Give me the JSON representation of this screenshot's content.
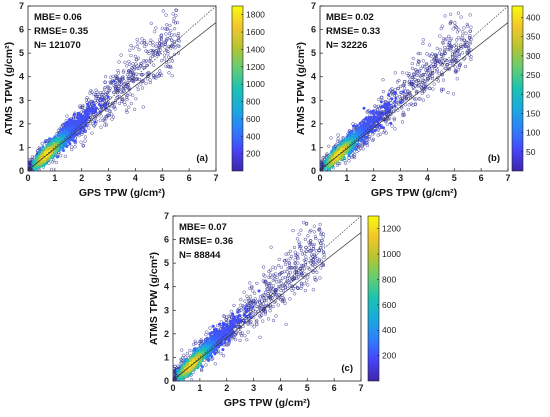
{
  "chart_data": [
    {
      "type": "scatter",
      "panel_label": "(a)",
      "xlabel": "GPS TPW (g/cm²)",
      "ylabel": "ATMS TPW (g/cm²)",
      "xlim": [
        0,
        7
      ],
      "ylim": [
        0,
        7
      ],
      "xticks": [
        0,
        1,
        2,
        3,
        4,
        5,
        6,
        7
      ],
      "yticks": [
        0,
        1,
        2,
        3,
        4,
        5,
        6,
        7
      ],
      "stats": [
        "MBE= 0.06",
        "RMSE= 0.35",
        "N= 121070"
      ],
      "colorbar": {
        "range": [
          0,
          1900
        ],
        "ticks": [
          200,
          400,
          600,
          800,
          1000,
          1200,
          1400,
          1600,
          1800
        ]
      },
      "colormap": [
        "#3e26a8",
        "#4743f8",
        "#2f7efb",
        "#1aa9de",
        "#1bc2b1",
        "#64cc74",
        "#b6c532",
        "#f2c62b",
        "#f9fb0e"
      ],
      "reference_lines": [
        "1:1 dotted",
        "linear fit solid"
      ],
      "marker_color": "#2c2a8f"
    },
    {
      "type": "scatter",
      "panel_label": "(b)",
      "xlabel": "GPS TPW (g/cm²)",
      "ylabel": "ATMS TPW (g/cm²)",
      "xlim": [
        0,
        7
      ],
      "ylim": [
        0,
        7
      ],
      "xticks": [
        0,
        1,
        2,
        3,
        4,
        5,
        6,
        7
      ],
      "yticks": [
        0,
        1,
        2,
        3,
        4,
        5,
        6,
        7
      ],
      "stats": [
        "MBE= 0.02",
        "RMSE= 0.33",
        "N= 32226"
      ],
      "colorbar": {
        "range": [
          0,
          430
        ],
        "ticks": [
          50,
          100,
          150,
          200,
          250,
          300,
          350,
          400
        ]
      },
      "colormap": [
        "#3e26a8",
        "#4743f8",
        "#2f7efb",
        "#1aa9de",
        "#1bc2b1",
        "#64cc74",
        "#b6c532",
        "#f2c62b",
        "#f9fb0e"
      ],
      "reference_lines": [
        "1:1 dotted",
        "linear fit solid"
      ],
      "marker_color": "#2c2a8f"
    },
    {
      "type": "scatter",
      "panel_label": "(c)",
      "xlabel": "GPS TPW (g/cm²)",
      "ylabel": "ATMS TPW (g/cm²)",
      "xlim": [
        0,
        7
      ],
      "ylim": [
        0,
        7
      ],
      "xticks": [
        0,
        1,
        2,
        3,
        4,
        5,
        6,
        7
      ],
      "yticks": [
        0,
        1,
        2,
        3,
        4,
        5,
        6,
        7
      ],
      "stats": [
        "MBE= 0.07",
        "RMSE= 0.36",
        "N= 88844"
      ],
      "colorbar": {
        "range": [
          0,
          1300
        ],
        "ticks": [
          200,
          400,
          600,
          800,
          1000,
          1200
        ]
      },
      "colormap": [
        "#3e26a8",
        "#4743f8",
        "#2f7efb",
        "#1aa9de",
        "#1bc2b1",
        "#64cc74",
        "#b6c532",
        "#f2c62b",
        "#f9fb0e"
      ],
      "reference_lines": [
        "1:1 dotted",
        "linear fit solid"
      ],
      "marker_color": "#2c2a8f"
    }
  ]
}
